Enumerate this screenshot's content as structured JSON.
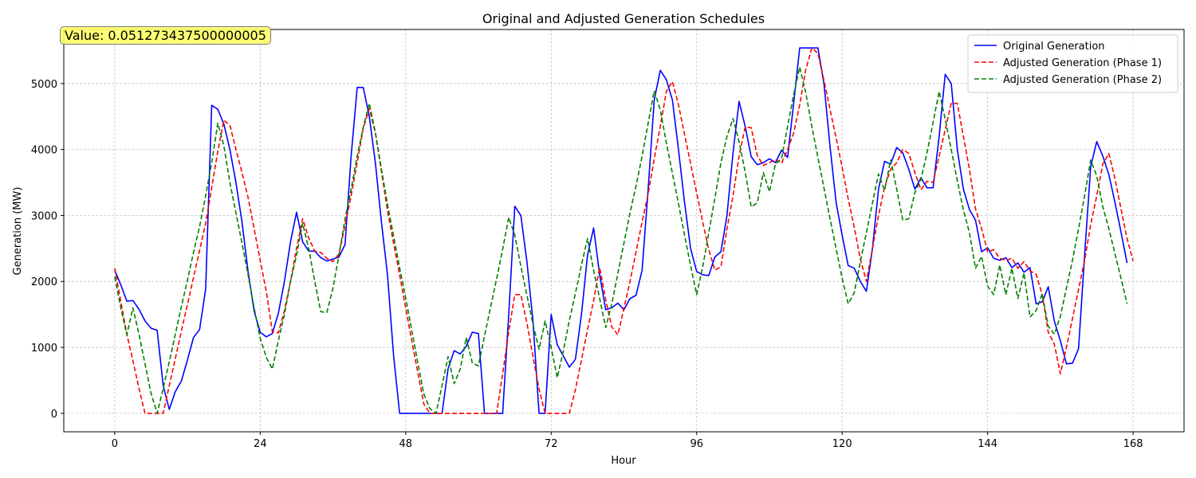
{
  "annotation": {
    "text": "Value: 0.051273437500000005"
  },
  "chart_data": {
    "type": "line",
    "title": "Original and Adjusted Generation Schedules",
    "xlabel": "Hour",
    "ylabel": "Generation (MW)",
    "xlim": [
      -8.4,
      176.4
    ],
    "ylim": [
      -280,
      5820
    ],
    "xticks": [
      0,
      24,
      48,
      72,
      96,
      120,
      144,
      168
    ],
    "yticks": [
      0,
      1000,
      2000,
      3000,
      4000,
      5000
    ],
    "grid": true,
    "legend_position": "upper right",
    "series": [
      {
        "name": "Original Generation",
        "color": "#0000ff",
        "style": "solid",
        "values": [
          2170,
          1950,
          1700,
          1710,
          1580,
          1400,
          1290,
          1260,
          420,
          60,
          330,
          490,
          810,
          1150,
          1270,
          1880,
          4670,
          4610,
          4390,
          4000,
          3500,
          2900,
          2150,
          1550,
          1230,
          1160,
          1210,
          1520,
          2000,
          2600,
          3050,
          2600,
          2460,
          2460,
          2360,
          2310,
          2340,
          2370,
          2560,
          3900,
          4940,
          4940,
          4500,
          3800,
          2900,
          2100,
          880,
          0,
          0,
          0,
          0,
          0,
          0,
          0,
          0,
          680,
          950,
          900,
          1020,
          1230,
          1210,
          0,
          0,
          0,
          0,
          1500,
          3140,
          3000,
          2300,
          1400,
          0,
          0,
          1500,
          1040,
          870,
          700,
          820,
          1500,
          2400,
          2810,
          2100,
          1570,
          1600,
          1670,
          1570,
          1740,
          1790,
          2170,
          3400,
          4750,
          5200,
          5060,
          4750,
          4000,
          3200,
          2500,
          2150,
          2100,
          2090,
          2370,
          2450,
          3000,
          3950,
          4730,
          4350,
          3890,
          3770,
          3800,
          3860,
          3800,
          3990,
          3880,
          4700,
          5540,
          5540,
          5540,
          5540,
          5000,
          4050,
          3200,
          2700,
          2240,
          2200,
          2000,
          1850,
          2500,
          3400,
          3820,
          3780,
          4030,
          3950,
          3700,
          3400,
          3570,
          3420,
          3420,
          4200,
          5140,
          5000,
          4000,
          3400,
          3090,
          2930,
          2450,
          2510,
          2350,
          2320,
          2360,
          2210,
          2280,
          2140,
          2210,
          1660,
          1690,
          1920,
          1400,
          1100,
          750,
          760,
          980,
          2400,
          3740,
          4120,
          3900,
          3620,
          3200,
          2750,
          2280
        ]
      },
      {
        "name": "Adjusted Generation (Phase 1)",
        "color": "#ff0000",
        "style": "dashed",
        "values": [
          2200,
          1700,
          1200,
          800,
          380,
          0,
          0,
          0,
          0,
          420,
          830,
          1250,
          1650,
          2060,
          2470,
          2880,
          3420,
          3970,
          4440,
          4370,
          4000,
          3650,
          3270,
          2800,
          2320,
          1850,
          1240,
          1220,
          1560,
          2000,
          2500,
          2950,
          2660,
          2460,
          2440,
          2350,
          2300,
          2420,
          2850,
          3300,
          3800,
          4320,
          4620,
          4250,
          3670,
          3070,
          2580,
          2100,
          1600,
          1100,
          620,
          140,
          0,
          0,
          0,
          0,
          0,
          0,
          0,
          0,
          0,
          0,
          0,
          0,
          600,
          1240,
          1800,
          1800,
          1370,
          860,
          370,
          0,
          0,
          0,
          0,
          0,
          360,
          810,
          1270,
          1710,
          2210,
          1720,
          1310,
          1190,
          1590,
          2000,
          2450,
          2900,
          3330,
          3860,
          4350,
          4880,
          5030,
          4680,
          4230,
          3790,
          3340,
          2900,
          2480,
          2170,
          2220,
          2800,
          3300,
          3900,
          4340,
          4330,
          3910,
          3760,
          3800,
          3850,
          3790,
          4000,
          4250,
          4680,
          5210,
          5540,
          5460,
          5050,
          4610,
          4180,
          3730,
          3250,
          2820,
          2340,
          2000,
          2500,
          3000,
          3430,
          3700,
          3800,
          4000,
          3940,
          3650,
          3390,
          3520,
          3500,
          3900,
          4300,
          4700,
          4700,
          4200,
          3700,
          3100,
          2800,
          2450,
          2480,
          2350,
          2320,
          2350,
          2200,
          2300,
          2160,
          2110,
          1800,
          1230,
          1050,
          600,
          1000,
          1440,
          1880,
          2320,
          2860,
          3300,
          3780,
          3940,
          3560,
          3100,
          2650,
          2310
        ]
      },
      {
        "name": "Adjusted Generation (Phase 2)",
        "color": "#008000",
        "style": "dashed",
        "values": [
          2070,
          1600,
          1190,
          1600,
          1200,
          750,
          300,
          0,
          380,
          780,
          1200,
          1620,
          2020,
          2440,
          2830,
          3300,
          3800,
          4400,
          4060,
          3500,
          3040,
          2580,
          2100,
          1600,
          1140,
          850,
          670,
          1100,
          1500,
          2000,
          2400,
          2880,
          2500,
          2000,
          1540,
          1530,
          1900,
          2400,
          2950,
          3400,
          3900,
          4340,
          4700,
          4260,
          3700,
          3170,
          2690,
          2210,
          1750,
          1260,
          770,
          290,
          70,
          0,
          420,
          860,
          450,
          670,
          1150,
          760,
          720,
          1170,
          1610,
          2040,
          2490,
          2970,
          2700,
          2230,
          1790,
          1350,
          970,
          1400,
          1000,
          540,
          940,
          1410,
          1820,
          2250,
          2650,
          2170,
          1740,
          1300,
          1660,
          2120,
          2580,
          3040,
          3450,
          3900,
          4400,
          4890,
          4600,
          4100,
          3640,
          3180,
          2700,
          2240,
          1800,
          2220,
          2740,
          3260,
          3800,
          4200,
          4470,
          4120,
          3660,
          3130,
          3190,
          3650,
          3360,
          3780,
          3860,
          4350,
          4830,
          5250,
          4860,
          4350,
          3880,
          3420,
          2950,
          2500,
          2050,
          1660,
          1830,
          2300,
          2740,
          3190,
          3630,
          3380,
          3840,
          3400,
          2930,
          2950,
          3350,
          3550,
          3950,
          4410,
          4880,
          4460,
          4000,
          3530,
          3080,
          2740,
          2200,
          2380,
          1930,
          1800,
          2250,
          1800,
          2200,
          1740,
          2130,
          1460,
          1560,
          1810,
          1320,
          1200,
          1470,
          1900,
          2320,
          2800,
          3300,
          3840,
          3600,
          3130,
          2800,
          2420,
          2050,
          1660
        ]
      }
    ]
  }
}
